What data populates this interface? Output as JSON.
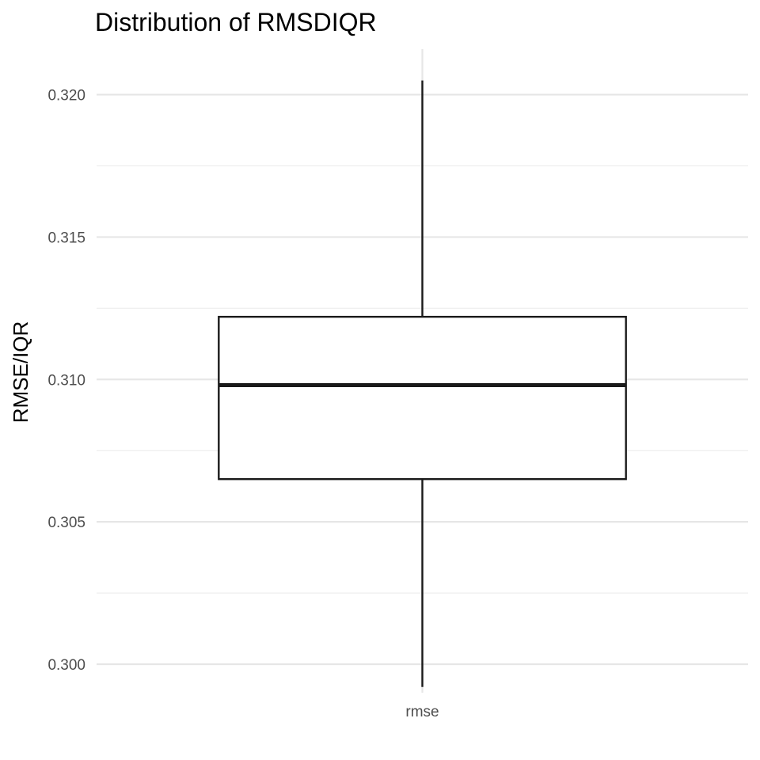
{
  "chart_data": {
    "type": "boxplot",
    "title": "Distribution of RMSDIQR",
    "xlabel": "",
    "ylabel": "RMSE/IQR",
    "categories": [
      "rmse"
    ],
    "boxes": [
      {
        "category": "rmse",
        "min": 0.2992,
        "q1": 0.3065,
        "median": 0.3098,
        "q3": 0.3122,
        "max": 0.3205
      }
    ],
    "ylim": [
      0.299,
      0.3216
    ],
    "yticks": [
      0.3,
      0.305,
      0.31,
      0.315,
      0.32
    ],
    "ytick_labels": [
      "0.300",
      "0.305",
      "0.310",
      "0.315",
      "0.320"
    ],
    "grid": true,
    "legend": "none"
  }
}
